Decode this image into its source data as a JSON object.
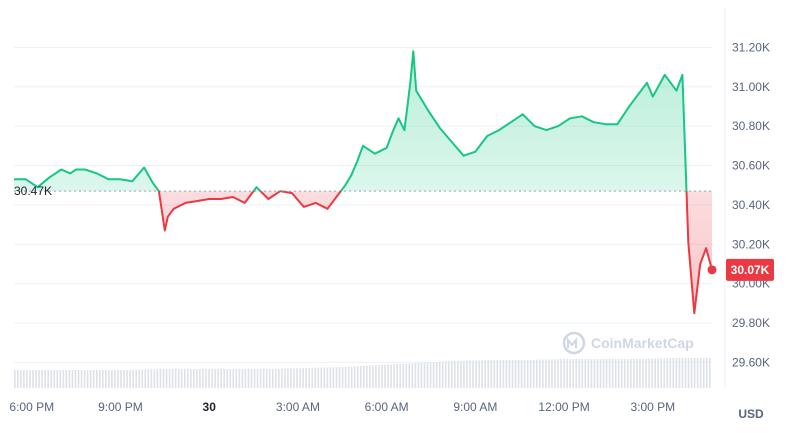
{
  "chart_data": {
    "type": "line",
    "title": "",
    "currency_label": "USD",
    "watermark": "CoinMarketCap",
    "open_label": "30.47K",
    "open_value": 30.47,
    "last_label": "30.07K",
    "last_value": 30.07,
    "ylim": [
      29.47,
      31.4
    ],
    "y_ticks": [
      {
        "value": 31.2,
        "label": "31.20K"
      },
      {
        "value": 31.0,
        "label": "31.00K"
      },
      {
        "value": 30.8,
        "label": "30.80K"
      },
      {
        "value": 30.6,
        "label": "30.60K"
      },
      {
        "value": 30.4,
        "label": "30.40K"
      },
      {
        "value": 30.2,
        "label": "30.20K"
      },
      {
        "value": 30.0,
        "label": "30.00K"
      },
      {
        "value": 29.8,
        "label": "29.80K"
      },
      {
        "value": 29.6,
        "label": "29.60K"
      }
    ],
    "xlim": [
      17.4,
      41.0
    ],
    "x_ticks": [
      {
        "hour": 18,
        "label": "6:00 PM",
        "bold": false
      },
      {
        "hour": 21,
        "label": "9:00 PM",
        "bold": false
      },
      {
        "hour": 24,
        "label": "30",
        "bold": true
      },
      {
        "hour": 27,
        "label": "3:00 AM",
        "bold": false
      },
      {
        "hour": 30,
        "label": "6:00 AM",
        "bold": false
      },
      {
        "hour": 33,
        "label": "9:00 AM",
        "bold": false
      },
      {
        "hour": 36,
        "label": "12:00 PM",
        "bold": false
      },
      {
        "hour": 39,
        "label": "3:00 PM",
        "bold": false
      }
    ],
    "series": [
      {
        "x": [
          17.4,
          17.8,
          18.2,
          18.6,
          19.0,
          19.3,
          19.5,
          19.8,
          20.2,
          20.6,
          21.0,
          21.4,
          21.8,
          22.1,
          22.3,
          22.5,
          22.6,
          22.8,
          23.2,
          23.6,
          24.0,
          24.4,
          24.8,
          25.2,
          25.6,
          26.0,
          26.4,
          26.8,
          27.2,
          27.6,
          28.0,
          28.4,
          28.6,
          28.8,
          29.0,
          29.2,
          29.6,
          30.0,
          30.2,
          30.4,
          30.6,
          30.7,
          30.8,
          30.9,
          31.0,
          31.4,
          31.8,
          32.2,
          32.6,
          33.0,
          33.4,
          33.8,
          34.2,
          34.6,
          35.0,
          35.4,
          35.8,
          36.2,
          36.6,
          37.0,
          37.4,
          37.8,
          38.2,
          38.6,
          38.8,
          39.0,
          39.4,
          39.8,
          40.0,
          40.2,
          40.4,
          40.6,
          40.8,
          41.0
        ],
        "y": [
          30.53,
          30.53,
          30.49,
          30.54,
          30.58,
          30.56,
          30.58,
          30.58,
          30.56,
          30.53,
          30.53,
          30.52,
          30.59,
          30.51,
          30.47,
          30.27,
          30.34,
          30.38,
          30.41,
          30.42,
          30.43,
          30.43,
          30.44,
          30.41,
          30.49,
          30.43,
          30.47,
          30.46,
          30.39,
          30.41,
          30.38,
          30.46,
          30.5,
          30.55,
          30.62,
          30.7,
          30.66,
          30.69,
          30.77,
          30.84,
          30.78,
          30.9,
          31.02,
          31.18,
          30.98,
          30.88,
          30.79,
          30.72,
          30.65,
          30.67,
          30.75,
          30.78,
          30.82,
          30.86,
          30.8,
          30.78,
          30.8,
          30.84,
          30.85,
          30.82,
          30.81,
          30.81,
          30.9,
          30.98,
          31.02,
          30.95,
          31.06,
          30.98,
          31.06,
          30.21,
          29.85,
          30.1,
          30.18,
          30.07
        ]
      }
    ],
    "volume": [
      0.18,
      0.18,
      0.18,
      0.18,
      0.19,
      0.19,
      0.19,
      0.19,
      0.2,
      0.21,
      0.23,
      0.25,
      0.27,
      0.28,
      0.28,
      0.29,
      0.29,
      0.29,
      0.3,
      0.3
    ]
  }
}
